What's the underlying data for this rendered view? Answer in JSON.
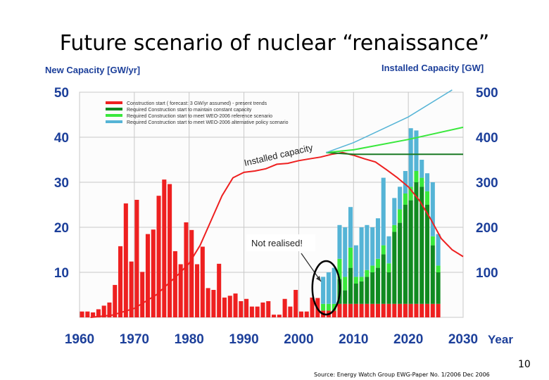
{
  "slide": {
    "title": "Future scenario of nuclear “renaissance”",
    "source": "Source: Energy Watch Group EWG-Paper No. 1/2006 Dec 2006",
    "page_number": "10"
  },
  "chart_data": {
    "type": "bar",
    "title": "Future scenario of nuclear “renaissance”",
    "ylabel": "New Capacity [GW/yr]",
    "y2label": "Installed Capacity [GW]",
    "xlabel": "Year",
    "xlim": [
      1960,
      2030
    ],
    "ylim": [
      0,
      50
    ],
    "y2lim": [
      0,
      500
    ],
    "x_ticks": [
      1960,
      1970,
      1980,
      1990,
      2000,
      2010,
      2020,
      2030
    ],
    "x_tick_labels": [
      "1960",
      "1970",
      "1980",
      "1990",
      "2000",
      "2010",
      "2020",
      "2030"
    ],
    "y_ticks": [
      10,
      20,
      30,
      40,
      50
    ],
    "y_tick_labels": [
      "10",
      "20",
      "30",
      "40",
      "50"
    ],
    "y2_ticks": [
      100,
      200,
      300,
      400,
      500
    ],
    "y2_tick_labels": [
      "100",
      "200",
      "300",
      "400",
      "500"
    ],
    "legend": {
      "placement": "top-left",
      "entries": [
        "Construction start ( forecast: 3 GW/yr assumed) - present trends",
        "Required Construction start to maintain constant capacity",
        "Required Construction start to meet WEO-2006 reference scenario",
        "Required Construction start to meet WEO-2006 alternative policy scenario"
      ]
    },
    "annotations": {
      "installed_capacity": "Installed capacity",
      "not_realised": "Not realised!"
    },
    "colors": {
      "red": "#ee2020",
      "dark_green": "#108a20",
      "light_green": "#39e83c",
      "cyan": "#55b4d6",
      "axis_text": "#1c3f9a",
      "grid": "#c8c8c8"
    },
    "historical_bars": {
      "years": [
        1960,
        1961,
        1962,
        1963,
        1964,
        1965,
        1966,
        1967,
        1968,
        1969,
        1970,
        1971,
        1972,
        1973,
        1974,
        1975,
        1976,
        1977,
        1978,
        1979,
        1980,
        1981,
        1982,
        1983,
        1984,
        1985,
        1986,
        1987,
        1988,
        1989,
        1990,
        1991,
        1992,
        1993,
        1994,
        1995,
        1996,
        1997,
        1998,
        1999,
        2000,
        2001,
        2002,
        2003
      ],
      "values": [
        1.3,
        1.3,
        1.1,
        1.8,
        2.6,
        3.3,
        7.2,
        15.8,
        25.3,
        12.4,
        26.1,
        10.1,
        18.5,
        19.5,
        27.0,
        30.6,
        29.6,
        14.7,
        11.8,
        21.1,
        19.4,
        11.8,
        15.7,
        6.5,
        6.1,
        11.9,
        4.4,
        4.8,
        5.3,
        3.6,
        4.1,
        2.4,
        2.4,
        3.3,
        3.6,
        0.6,
        0.6,
        4.1,
        2.4,
        6.1,
        1.3,
        1.3,
        4.4,
        4.3
      ]
    },
    "forecast_bars": {
      "years": [
        2004,
        2005,
        2006,
        2007,
        2008,
        2009,
        2010,
        2011,
        2012,
        2013,
        2014,
        2015,
        2016,
        2017,
        2018,
        2019,
        2020,
        2021,
        2022,
        2023,
        2024,
        2025
      ],
      "red": [
        1.5,
        1.5,
        1.5,
        3,
        3,
        3,
        3,
        3,
        3,
        3,
        3,
        3,
        3,
        3,
        3,
        3,
        3,
        3,
        3,
        3,
        3,
        3
      ],
      "dark_green": [
        0,
        0,
        0,
        5.5,
        3,
        8,
        4.5,
        5,
        6,
        7,
        8,
        11,
        7,
        16,
        18,
        22,
        23,
        27,
        26,
        22,
        13,
        7
      ],
      "light_green": [
        1.5,
        1.5,
        1.5,
        4.5,
        3,
        4.5,
        1.5,
        1,
        1.5,
        1.5,
        2,
        2,
        2,
        1.5,
        3,
        2.5,
        3,
        2.5,
        2,
        3,
        2,
        1.5
      ],
      "cyan": [
        6,
        7,
        8,
        7.5,
        11,
        9,
        7,
        11,
        10,
        8.5,
        9,
        15,
        6,
        6,
        5,
        5,
        13,
        9,
        4,
        4,
        12,
        7
      ]
    },
    "installed_capacity_line": {
      "x": [
        1962,
        1966,
        1970,
        1974,
        1978,
        1980,
        1982,
        1984,
        1986,
        1988,
        1990,
        1992,
        1994,
        1996,
        1998,
        2000,
        2002,
        2004,
        2006,
        2008,
        2010,
        2012,
        2014,
        2016,
        2018,
        2020,
        2022,
        2024,
        2026,
        2028,
        2030
      ],
      "y": [
        0,
        5,
        20,
        50,
        95,
        120,
        160,
        215,
        270,
        310,
        322,
        325,
        330,
        340,
        342,
        348,
        352,
        356,
        362,
        366,
        360,
        352,
        345,
        328,
        310,
        290,
        260,
        220,
        175,
        150,
        135
      ]
    },
    "scenario_lines": [
      {
        "name": "constant capacity",
        "x": [
          2005,
          2010,
          2020,
          2030
        ],
        "y": [
          366,
          362,
          362,
          362
        ]
      },
      {
        "name": "WEO-2006 reference",
        "x": [
          2005,
          2010,
          2020,
          2030
        ],
        "y": [
          366,
          372,
          395,
          422
        ]
      },
      {
        "name": "WEO-2006 alternative policy",
        "x": [
          2005,
          2010,
          2020,
          2028
        ],
        "y": [
          366,
          388,
          445,
          505
        ]
      }
    ],
    "not_realised_years": [
      2003,
      2006
    ]
  }
}
